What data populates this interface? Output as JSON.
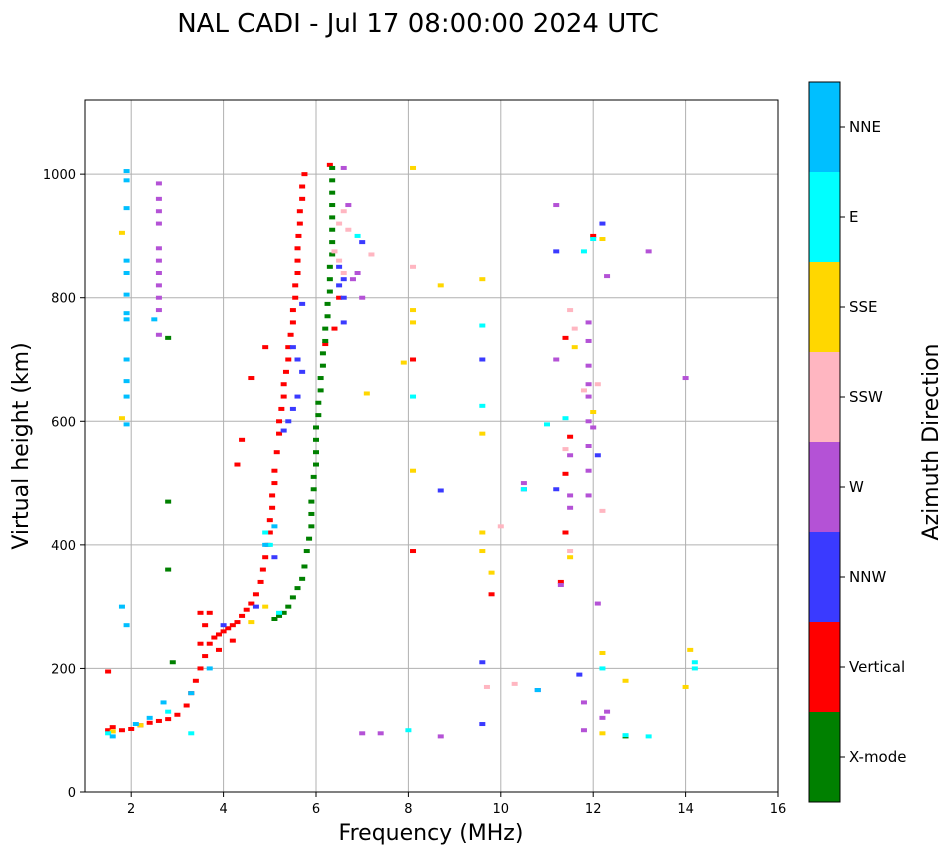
{
  "chart_data": {
    "type": "scatter",
    "title": "NAL CADI - Jul 17 08:00:00 2024 UTC",
    "xlabel": "Frequency (MHz)",
    "ylabel": "Virtual height (km)",
    "xlim": [
      1,
      16
    ],
    "ylim": [
      0,
      1120
    ],
    "xticks": [
      2,
      4,
      6,
      8,
      10,
      12,
      14,
      16
    ],
    "yticks": [
      0,
      200,
      400,
      600,
      800,
      1000
    ],
    "grid": true,
    "colorbar": {
      "title": "Azimuth Direction",
      "categories": [
        {
          "name": "X-mode",
          "color": "#008000"
        },
        {
          "name": "Vertical",
          "color": "#ff0000"
        },
        {
          "name": "NNW",
          "color": "#3a3aff"
        },
        {
          "name": "W",
          "color": "#b452d6"
        },
        {
          "name": "SSW",
          "color": "#ffb6c1"
        },
        {
          "name": "SSE",
          "color": "#ffd700"
        },
        {
          "name": "E",
          "color": "#00ffff"
        },
        {
          "name": "NNE",
          "color": "#00bfff"
        }
      ]
    },
    "series": [
      {
        "name": "Vertical",
        "color": "#ff0000",
        "points": [
          [
            1.5,
            100
          ],
          [
            1.6,
            105
          ],
          [
            1.8,
            100
          ],
          [
            2.0,
            102
          ],
          [
            2.2,
            108
          ],
          [
            2.4,
            112
          ],
          [
            2.6,
            115
          ],
          [
            2.8,
            118
          ],
          [
            3.0,
            125
          ],
          [
            3.2,
            140
          ],
          [
            3.3,
            160
          ],
          [
            3.4,
            180
          ],
          [
            3.5,
            200
          ],
          [
            3.6,
            220
          ],
          [
            3.7,
            240
          ],
          [
            3.8,
            250
          ],
          [
            3.9,
            255
          ],
          [
            4.0,
            260
          ],
          [
            4.1,
            265
          ],
          [
            4.2,
            270
          ],
          [
            4.3,
            275
          ],
          [
            4.4,
            285
          ],
          [
            4.5,
            295
          ],
          [
            4.6,
            305
          ],
          [
            4.7,
            320
          ],
          [
            4.8,
            340
          ],
          [
            4.85,
            360
          ],
          [
            4.9,
            380
          ],
          [
            4.95,
            400
          ],
          [
            5.0,
            420
          ],
          [
            5.0,
            440
          ],
          [
            5.05,
            460
          ],
          [
            5.05,
            480
          ],
          [
            5.1,
            500
          ],
          [
            5.1,
            520
          ],
          [
            5.15,
            550
          ],
          [
            5.2,
            580
          ],
          [
            5.2,
            600
          ],
          [
            5.25,
            620
          ],
          [
            5.3,
            640
          ],
          [
            5.3,
            660
          ],
          [
            5.35,
            680
          ],
          [
            5.4,
            700
          ],
          [
            5.4,
            720
          ],
          [
            5.45,
            740
          ],
          [
            5.5,
            760
          ],
          [
            5.5,
            780
          ],
          [
            5.55,
            800
          ],
          [
            5.55,
            820
          ],
          [
            5.6,
            840
          ],
          [
            5.6,
            860
          ],
          [
            5.6,
            880
          ],
          [
            5.62,
            900
          ],
          [
            5.65,
            920
          ],
          [
            5.65,
            940
          ],
          [
            5.7,
            960
          ],
          [
            5.7,
            980
          ],
          [
            5.75,
            1000
          ],
          [
            4.3,
            530
          ],
          [
            4.4,
            570
          ],
          [
            4.6,
            670
          ],
          [
            4.9,
            720
          ],
          [
            3.5,
            290
          ],
          [
            3.7,
            290
          ],
          [
            3.6,
            270
          ],
          [
            3.5,
            240
          ],
          [
            3.9,
            230
          ],
          [
            4.2,
            245
          ],
          [
            1.5,
            195
          ],
          [
            6.4,
            750
          ],
          [
            6.3,
            1015
          ],
          [
            6.2,
            725
          ],
          [
            6.5,
            800
          ],
          [
            8.1,
            390
          ],
          [
            8.1,
            700
          ],
          [
            9.8,
            320
          ],
          [
            11.4,
            420
          ],
          [
            11.4,
            515
          ],
          [
            11.4,
            735
          ],
          [
            11.5,
            575
          ],
          [
            12.0,
            900
          ],
          [
            11.3,
            340
          ]
        ]
      },
      {
        "name": "X-mode",
        "color": "#008000",
        "points": [
          [
            5.1,
            280
          ],
          [
            5.2,
            285
          ],
          [
            5.3,
            290
          ],
          [
            5.4,
            300
          ],
          [
            5.5,
            315
          ],
          [
            5.6,
            330
          ],
          [
            5.7,
            345
          ],
          [
            5.75,
            365
          ],
          [
            5.8,
            390
          ],
          [
            5.85,
            410
          ],
          [
            5.9,
            430
          ],
          [
            5.9,
            450
          ],
          [
            5.9,
            470
          ],
          [
            5.95,
            490
          ],
          [
            5.95,
            510
          ],
          [
            6.0,
            530
          ],
          [
            6.0,
            550
          ],
          [
            6.0,
            570
          ],
          [
            6.0,
            590
          ],
          [
            6.05,
            610
          ],
          [
            6.05,
            630
          ],
          [
            6.1,
            650
          ],
          [
            6.1,
            670
          ],
          [
            6.15,
            690
          ],
          [
            6.15,
            710
          ],
          [
            6.2,
            730
          ],
          [
            6.2,
            750
          ],
          [
            6.25,
            770
          ],
          [
            6.25,
            790
          ],
          [
            6.3,
            810
          ],
          [
            6.3,
            830
          ],
          [
            6.3,
            850
          ],
          [
            6.35,
            870
          ],
          [
            6.35,
            890
          ],
          [
            6.35,
            910
          ],
          [
            6.35,
            930
          ],
          [
            6.35,
            950
          ],
          [
            6.35,
            970
          ],
          [
            6.35,
            990
          ],
          [
            6.35,
            1010
          ],
          [
            2.8,
            470
          ],
          [
            2.8,
            360
          ],
          [
            2.8,
            735
          ],
          [
            2.9,
            210
          ],
          [
            12.7,
            90
          ]
        ]
      },
      {
        "name": "NNW",
        "color": "#3a3aff",
        "points": [
          [
            5.3,
            585
          ],
          [
            5.4,
            600
          ],
          [
            5.5,
            620
          ],
          [
            5.6,
            640
          ],
          [
            5.7,
            680
          ],
          [
            5.5,
            720
          ],
          [
            5.6,
            700
          ],
          [
            5.7,
            790
          ],
          [
            6.5,
            820
          ],
          [
            6.5,
            850
          ],
          [
            6.6,
            830
          ],
          [
            6.6,
            800
          ],
          [
            7.0,
            890
          ],
          [
            8.7,
            488
          ],
          [
            9.6,
            700
          ],
          [
            10.5,
            490
          ],
          [
            11.2,
            490
          ],
          [
            11.2,
            875
          ],
          [
            12.1,
            545
          ],
          [
            6.6,
            760
          ],
          [
            12.2,
            920
          ],
          [
            11.7,
            190
          ],
          [
            9.6,
            110
          ],
          [
            9.6,
            210
          ],
          [
            4.7,
            300
          ],
          [
            5.1,
            380
          ],
          [
            4.0,
            270
          ],
          [
            10.8,
            165
          ]
        ]
      },
      {
        "name": "W",
        "color": "#b452d6",
        "points": [
          [
            2.6,
            985
          ],
          [
            2.6,
            960
          ],
          [
            2.6,
            940
          ],
          [
            2.6,
            920
          ],
          [
            2.6,
            880
          ],
          [
            2.6,
            860
          ],
          [
            2.6,
            840
          ],
          [
            2.6,
            820
          ],
          [
            2.6,
            800
          ],
          [
            2.6,
            780
          ],
          [
            2.6,
            740
          ],
          [
            6.6,
            1010
          ],
          [
            6.7,
            950
          ],
          [
            6.8,
            830
          ],
          [
            6.9,
            840
          ],
          [
            7.0,
            800
          ],
          [
            11.9,
            760
          ],
          [
            11.9,
            730
          ],
          [
            11.9,
            690
          ],
          [
            11.9,
            660
          ],
          [
            11.9,
            640
          ],
          [
            11.9,
            600
          ],
          [
            11.9,
            560
          ],
          [
            11.9,
            520
          ],
          [
            11.9,
            480
          ],
          [
            12.3,
            835
          ],
          [
            12.0,
            590
          ],
          [
            11.2,
            700
          ],
          [
            11.2,
            950
          ],
          [
            10.5,
            500
          ],
          [
            11.3,
            335
          ],
          [
            13.2,
            875
          ],
          [
            14.0,
            670
          ],
          [
            12.2,
            120
          ],
          [
            12.3,
            130
          ],
          [
            11.5,
            480
          ],
          [
            11.5,
            545
          ],
          [
            11.5,
            460
          ],
          [
            11.8,
            145
          ],
          [
            11.8,
            100
          ],
          [
            12.1,
            305
          ],
          [
            8.7,
            90
          ],
          [
            7.4,
            95
          ],
          [
            7.0,
            95
          ]
        ]
      },
      {
        "name": "SSW",
        "color": "#ffb6c1",
        "points": [
          [
            6.4,
            875
          ],
          [
            6.5,
            860
          ],
          [
            6.6,
            840
          ],
          [
            6.5,
            920
          ],
          [
            6.6,
            940
          ],
          [
            6.7,
            910
          ],
          [
            11.5,
            780
          ],
          [
            11.6,
            750
          ],
          [
            11.8,
            650
          ],
          [
            12.1,
            660
          ],
          [
            12.2,
            455
          ],
          [
            9.7,
            170
          ],
          [
            10.3,
            175
          ],
          [
            11.4,
            555
          ],
          [
            11.5,
            390
          ],
          [
            8.1,
            850
          ],
          [
            10.0,
            430
          ],
          [
            7.2,
            870
          ]
        ]
      },
      {
        "name": "SSE",
        "color": "#ffd700",
        "points": [
          [
            8.1,
            1010
          ],
          [
            8.1,
            780
          ],
          [
            8.1,
            760
          ],
          [
            8.1,
            520
          ],
          [
            8.7,
            820
          ],
          [
            9.6,
            830
          ],
          [
            9.6,
            580
          ],
          [
            9.6,
            420
          ],
          [
            9.6,
            390
          ],
          [
            9.8,
            355
          ],
          [
            11.5,
            380
          ],
          [
            11.6,
            720
          ],
          [
            12.0,
            615
          ],
          [
            12.2,
            895
          ],
          [
            12.2,
            225
          ],
          [
            12.7,
            180
          ],
          [
            14.1,
            230
          ],
          [
            14.0,
            170
          ],
          [
            12.2,
            95
          ],
          [
            1.8,
            605
          ],
          [
            1.8,
            905
          ],
          [
            7.9,
            695
          ],
          [
            7.1,
            645
          ],
          [
            4.6,
            275
          ],
          [
            4.9,
            300
          ],
          [
            2.2,
            108
          ],
          [
            1.6,
            98
          ]
        ]
      },
      {
        "name": "E",
        "color": "#00ffff",
        "points": [
          [
            8.1,
            640
          ],
          [
            9.6,
            625
          ],
          [
            9.6,
            755
          ],
          [
            10.5,
            490
          ],
          [
            11.0,
            595
          ],
          [
            11.4,
            605
          ],
          [
            11.8,
            875
          ],
          [
            12.0,
            895
          ],
          [
            12.2,
            200
          ],
          [
            13.2,
            90
          ],
          [
            12.7,
            92
          ],
          [
            6.9,
            900
          ],
          [
            4.9,
            420
          ],
          [
            5.0,
            400
          ],
          [
            5.2,
            290
          ],
          [
            3.3,
            95
          ],
          [
            2.8,
            130
          ],
          [
            1.5,
            95
          ],
          [
            8.0,
            100
          ],
          [
            14.2,
            200
          ],
          [
            14.2,
            210
          ]
        ]
      },
      {
        "name": "NNE",
        "color": "#00bfff",
        "points": [
          [
            1.9,
            1005
          ],
          [
            1.9,
            990
          ],
          [
            1.9,
            945
          ],
          [
            1.9,
            860
          ],
          [
            1.9,
            840
          ],
          [
            1.9,
            805
          ],
          [
            1.9,
            775
          ],
          [
            1.9,
            765
          ],
          [
            1.9,
            700
          ],
          [
            1.9,
            665
          ],
          [
            1.9,
            640
          ],
          [
            1.8,
            300
          ],
          [
            1.9,
            270
          ],
          [
            1.9,
            595
          ],
          [
            2.5,
            765
          ],
          [
            10.8,
            165
          ],
          [
            4.9,
            400
          ],
          [
            5.1,
            430
          ],
          [
            3.7,
            200
          ],
          [
            3.3,
            160
          ],
          [
            2.7,
            145
          ],
          [
            1.6,
            90
          ],
          [
            2.1,
            110
          ],
          [
            2.4,
            120
          ]
        ]
      }
    ]
  }
}
